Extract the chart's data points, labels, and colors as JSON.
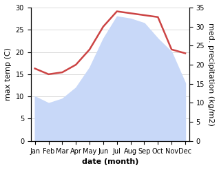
{
  "months": [
    "Jan",
    "Feb",
    "Mar",
    "Apr",
    "May",
    "Jun",
    "Jul",
    "Aug",
    "Sep",
    "Oct",
    "Nov",
    "Dec"
  ],
  "precipitation": [
    10.0,
    8.5,
    9.5,
    12.0,
    16.5,
    23.0,
    28.0,
    27.5,
    26.5,
    23.0,
    20.0,
    13.0
  ],
  "temp_right": [
    19.0,
    17.5,
    18.0,
    20.0,
    24.0,
    30.0,
    34.0,
    33.5,
    33.0,
    32.5,
    24.0,
    23.0
  ],
  "temp_color": "#cc4444",
  "precip_fill_color": "#c8d8f8",
  "background_color": "#ffffff",
  "left_ylim": [
    0,
    30
  ],
  "right_ylim": [
    0,
    35
  ],
  "xlabel": "date (month)",
  "ylabel_left": "max temp (C)",
  "ylabel_right": "med. precipitation (kg/m2)",
  "left_yticks": [
    0,
    5,
    10,
    15,
    20,
    25,
    30
  ],
  "right_yticks": [
    0,
    5,
    10,
    15,
    20,
    25,
    30,
    35
  ],
  "label_fontsize": 8,
  "tick_fontsize": 7
}
